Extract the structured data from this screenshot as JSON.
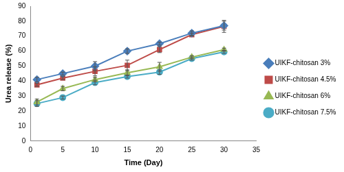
{
  "chart_data": {
    "type": "line",
    "x_label": "Time (Day)",
    "y_label": "Urea release (%)",
    "x": [
      1,
      5,
      10,
      15,
      20,
      25,
      30
    ],
    "xlim": [
      0,
      35
    ],
    "xticks": [
      0,
      5,
      10,
      15,
      20,
      25,
      30,
      35
    ],
    "ylim": [
      0,
      90
    ],
    "yticks": [
      0,
      10,
      20,
      30,
      40,
      50,
      60,
      70,
      80,
      90
    ],
    "grid": false,
    "legend": "right",
    "series": [
      {
        "name": "UIKF-chitosan 3%",
        "color": "#4a7ebb",
        "marker": "diamond",
        "values": [
          41,
          45,
          50,
          60,
          65,
          72,
          77
        ],
        "errors": [
          1.5,
          1,
          3,
          1.5,
          1,
          1.5,
          3
        ]
      },
      {
        "name": "UIKF-chitosan 4.5%",
        "color": "#be4b48",
        "marker": "square",
        "values": [
          37.5,
          42,
          46.5,
          50.5,
          61,
          71,
          76.5
        ],
        "errors": [
          1,
          1,
          3,
          3.5,
          2,
          1,
          4
        ]
      },
      {
        "name": "UIKF-chitosan 6%",
        "color": "#98b954",
        "marker": "triangle",
        "values": [
          26,
          35,
          41,
          45.5,
          49.5,
          56,
          61
        ],
        "errors": [
          2,
          1.5,
          1.5,
          2,
          3,
          1,
          1
        ]
      },
      {
        "name": "UIKF-chitosan 7.5%",
        "color": "#4bacc6",
        "marker": "circle",
        "values": [
          25,
          29,
          39,
          43,
          46,
          55,
          59.5
        ],
        "errors": [
          2,
          1,
          1.5,
          1,
          1.5,
          1,
          1
        ]
      }
    ]
  }
}
